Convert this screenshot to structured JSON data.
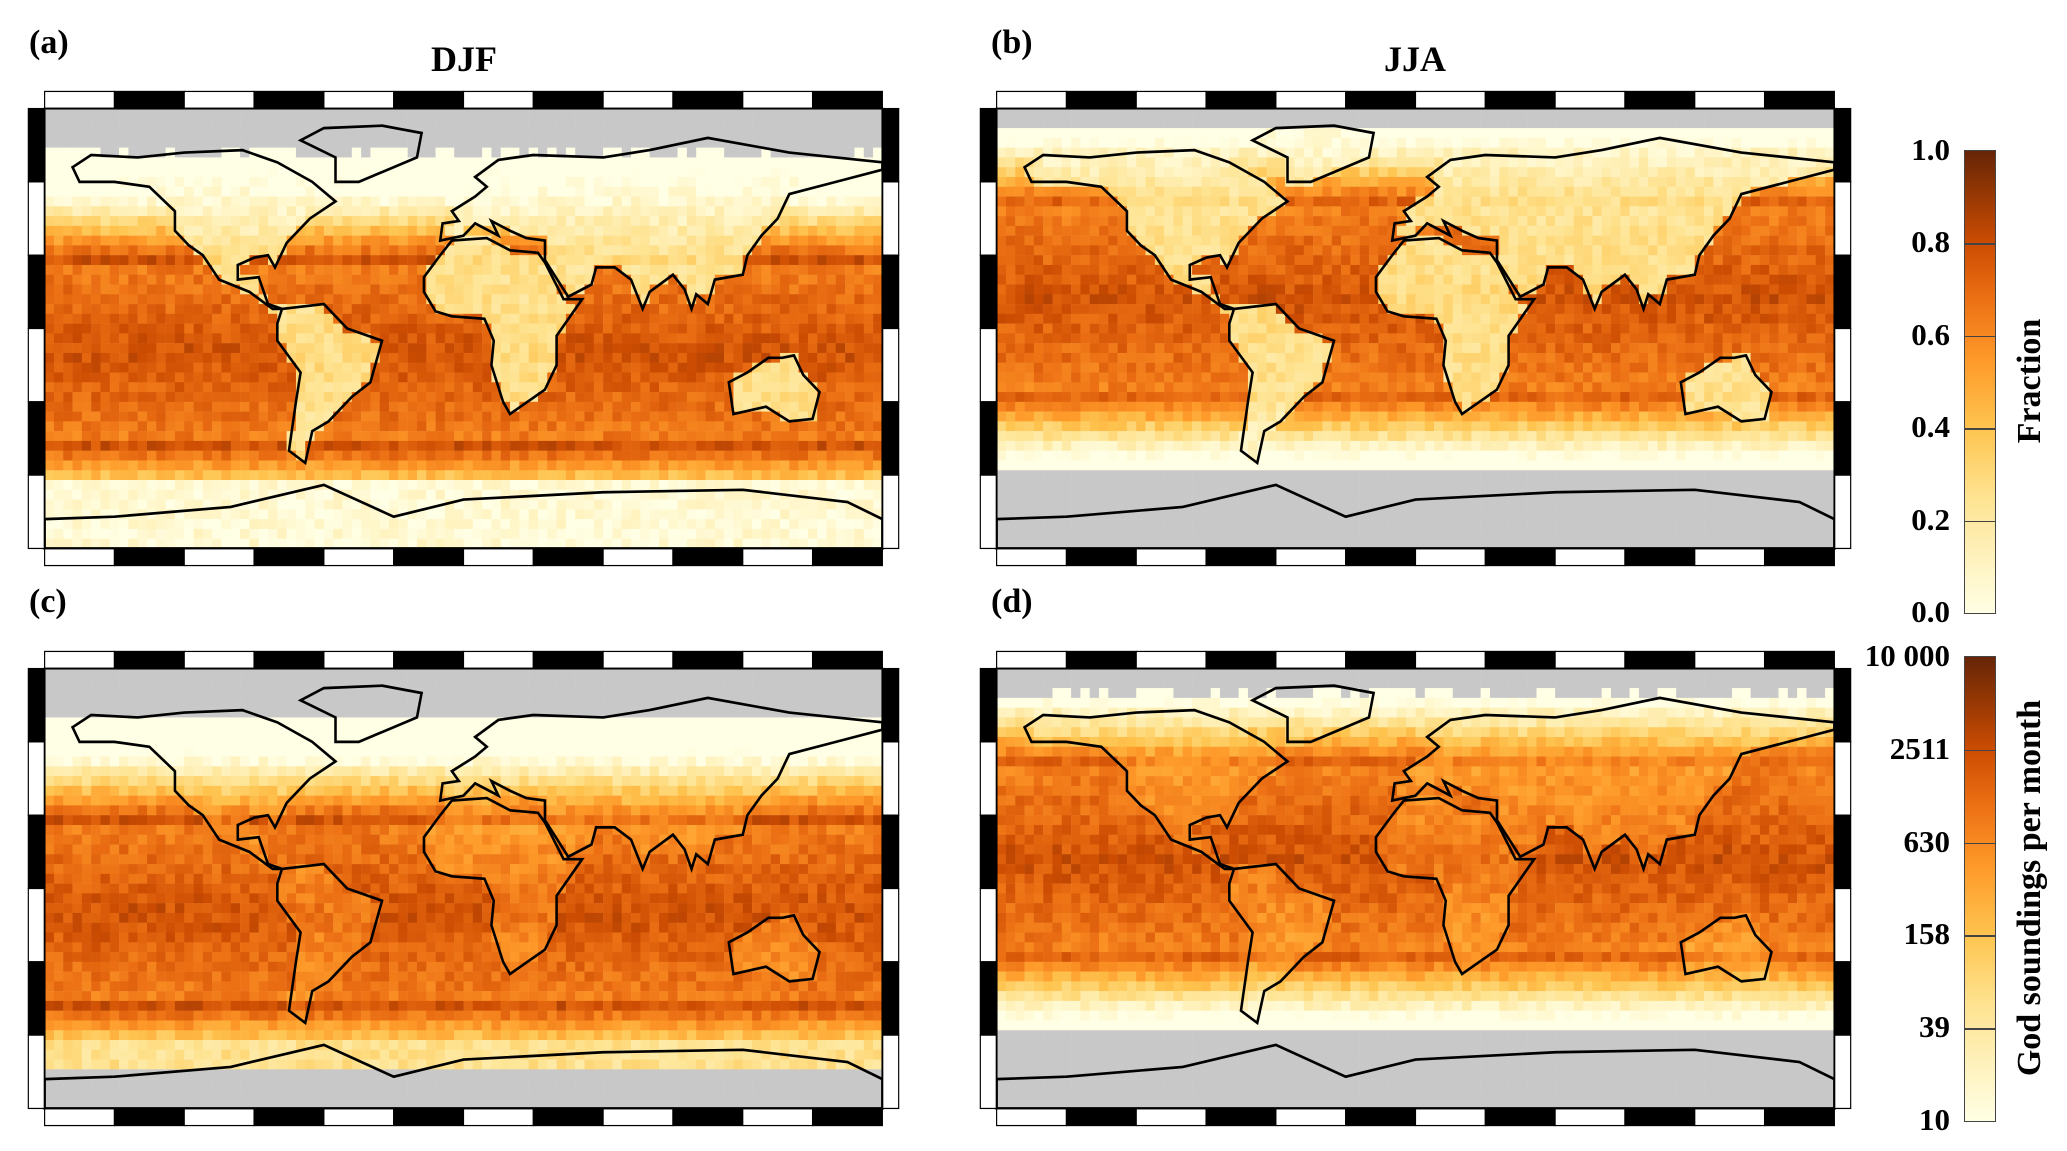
{
  "chart_data": {
    "type": "heatmap",
    "panels": [
      {
        "label": "(a)",
        "title": "DJF",
        "quantity": "Fraction",
        "season": "DJF"
      },
      {
        "label": "(b)",
        "title": "JJA",
        "quantity": "Fraction",
        "season": "JJA"
      },
      {
        "label": "(c)",
        "title": "",
        "quantity": "God soundings per month",
        "season": "DJF"
      },
      {
        "label": "(d)",
        "title": "",
        "quantity": "God soundings per month",
        "season": "JJA"
      }
    ],
    "colorbars": [
      {
        "title": "Fraction",
        "ticks": [
          "1.0",
          "0.8",
          "0.6",
          "0.4",
          "0.2",
          "0.0"
        ],
        "range": [
          0,
          1
        ]
      },
      {
        "title": "God soundings per month",
        "ticks": [
          "10 000",
          "2511",
          "630",
          "158",
          "39",
          "10"
        ],
        "range": [
          10,
          10000
        ],
        "scale": "log"
      }
    ],
    "colors": {
      "low": "#ffffe5",
      "mid": "#fe9929",
      "high": "#662506",
      "nodata": "#c8c8c8"
    },
    "xlim": [
      -180,
      180
    ],
    "ylim": [
      -90,
      90
    ]
  }
}
